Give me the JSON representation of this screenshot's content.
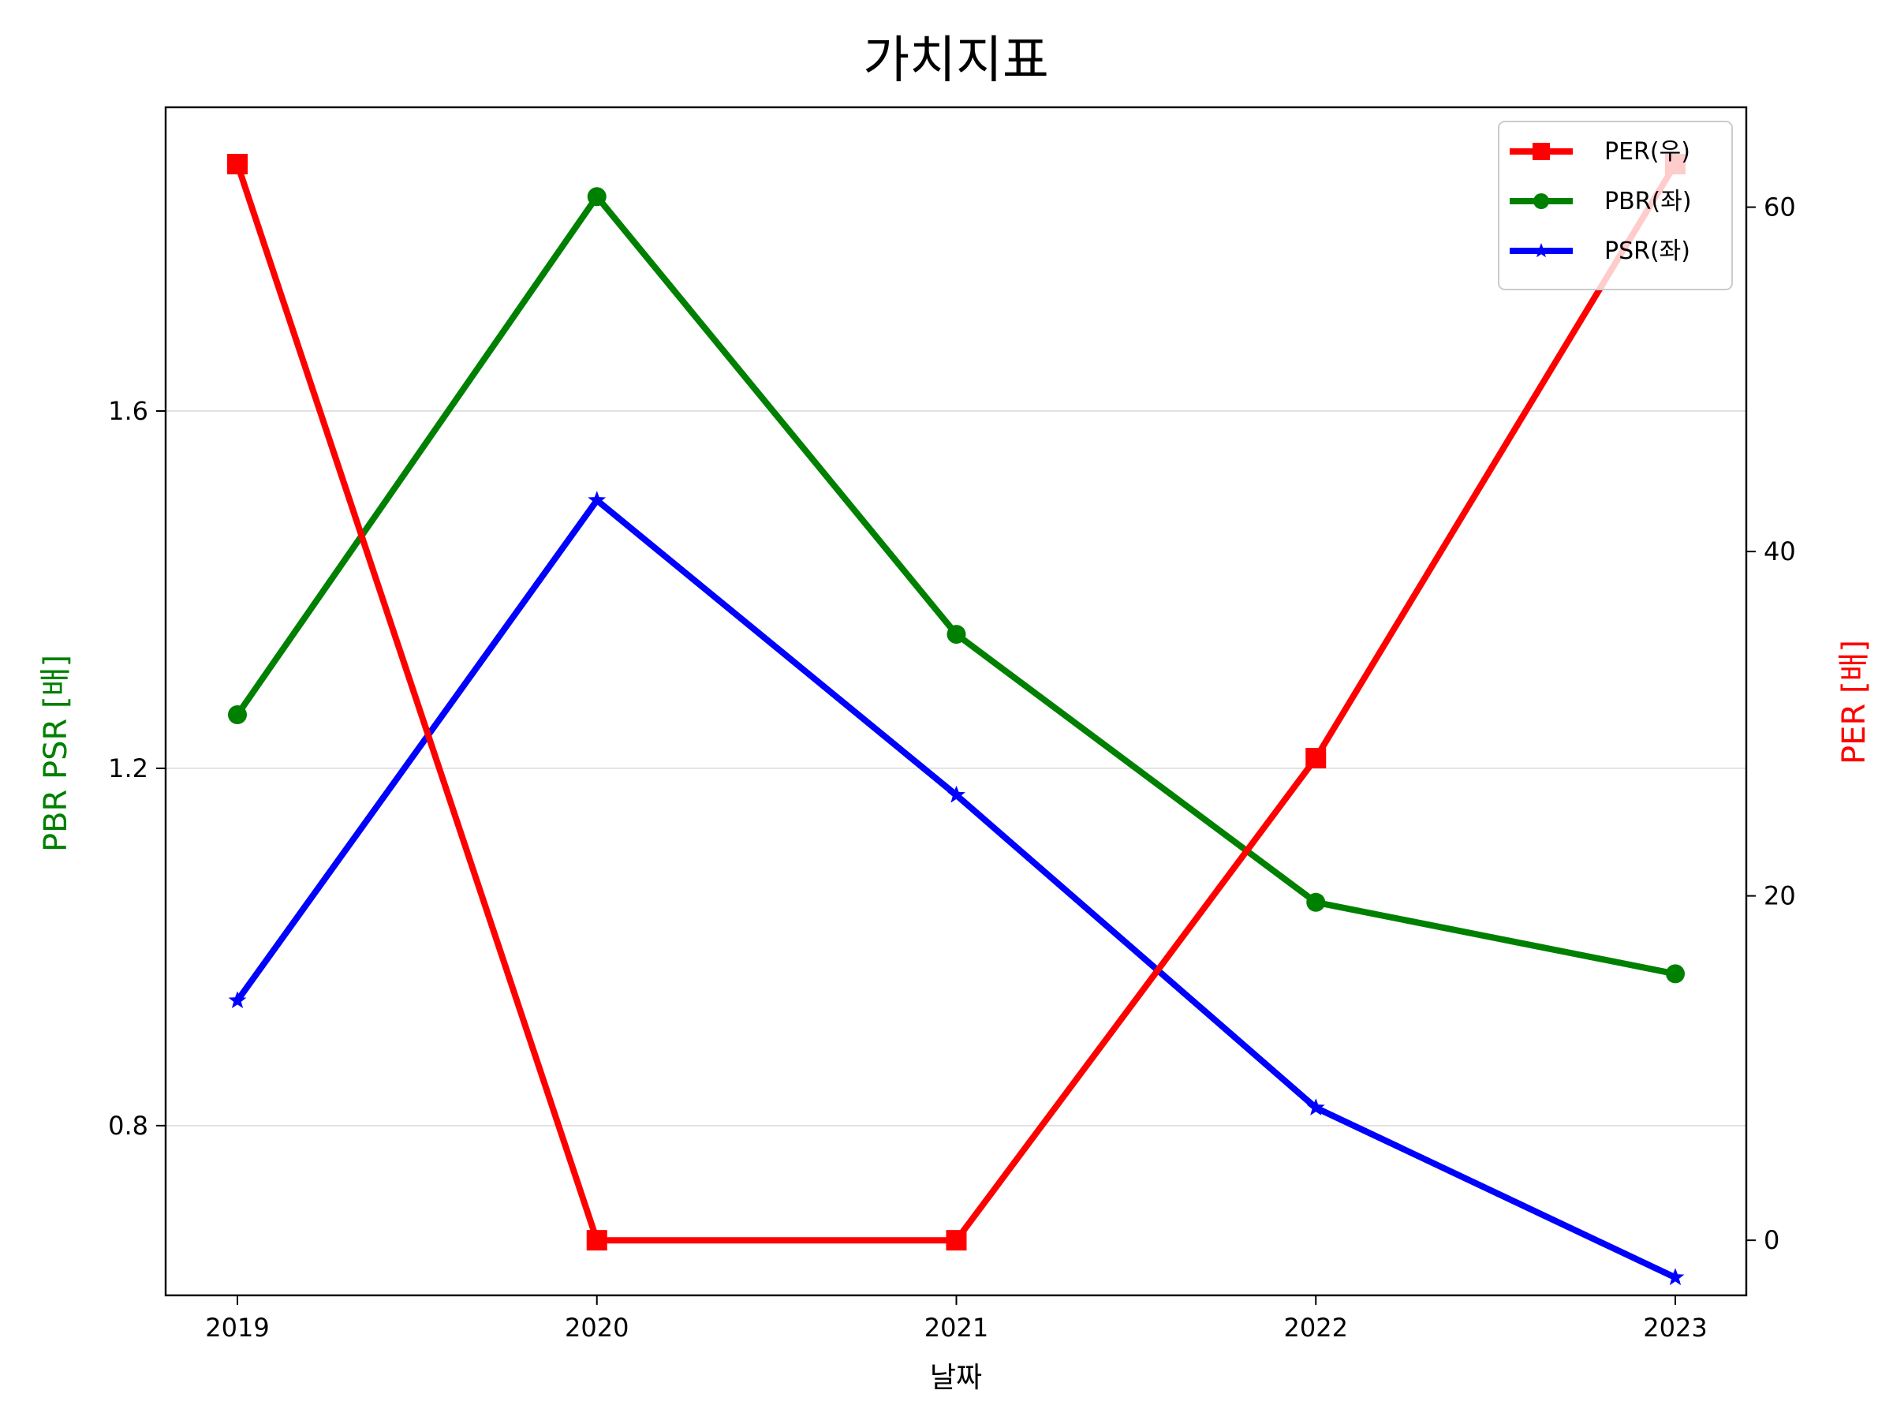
{
  "chart_data": {
    "type": "line",
    "title": "가치지표",
    "xlabel": "날짜",
    "ylabel_left": "PBR PSR [배]",
    "ylabel_right": "PER [배]",
    "x": [
      "2019",
      "2020",
      "2021",
      "2022",
      "2023"
    ],
    "series": [
      {
        "name": "PER(우)",
        "axis": "right",
        "color": "#ff0000",
        "marker": "square",
        "values": [
          62.5,
          0,
          0,
          28,
          62.5
        ]
      },
      {
        "name": "PBR(좌)",
        "axis": "left",
        "color": "#008000",
        "marker": "circle",
        "values": [
          1.26,
          1.84,
          1.35,
          1.05,
          0.97
        ]
      },
      {
        "name": "PSR(좌)",
        "axis": "left",
        "color": "#0000ff",
        "marker": "star",
        "values": [
          0.94,
          1.5,
          1.17,
          0.82,
          0.63
        ]
      }
    ],
    "ylim_left": [
      0.61,
      1.94
    ],
    "ylim_right": [
      -3.2,
      65.8
    ],
    "yticks_left": [
      0.8,
      1.2,
      1.6
    ],
    "yticks_left_labels": [
      "0.8",
      "1.2",
      "1.6"
    ],
    "yticks_right": [
      0,
      20,
      40,
      60
    ],
    "yticks_right_labels": [
      "0",
      "20",
      "40",
      "60"
    ],
    "grid": "horizontal, left axis",
    "legend_position": "top-right",
    "left_label_color": "#008000",
    "right_label_color": "#ff0000"
  }
}
